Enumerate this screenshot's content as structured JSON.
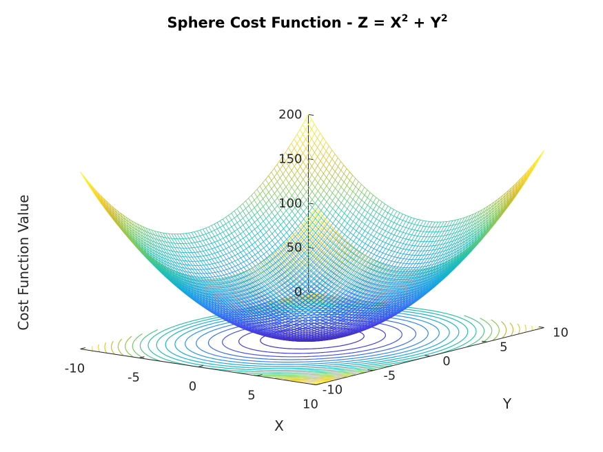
{
  "chart_data": {
    "type": "surface",
    "title": "Sphere Cost Function - Z = X² + Y²",
    "title_parts": {
      "lead": "Sphere Cost Function - Z = X",
      "exp1": "2",
      "mid": " + Y",
      "exp2": "2"
    },
    "xlabel": "X",
    "ylabel": "Y",
    "zlabel": "Cost Function Value",
    "function": "z = x^2 + y^2",
    "xlim": [
      -10,
      10
    ],
    "ylim": [
      -10,
      10
    ],
    "zlim": [
      0,
      200
    ],
    "x_ticks": [
      "-10",
      "-5",
      "0",
      "5",
      "10"
    ],
    "y_ticks": [
      "-10",
      "-5",
      "0",
      "5",
      "10"
    ],
    "z_ticks": [
      "0",
      "50",
      "100",
      "150",
      "200"
    ],
    "x_tick_values": [
      -10,
      -5,
      0,
      5,
      10
    ],
    "y_tick_values": [
      -10,
      -5,
      0,
      5,
      10
    ],
    "z_tick_values": [
      0,
      50,
      100,
      150,
      200
    ],
    "mesh_step": 0.25,
    "contour_levels": [
      10,
      20,
      30,
      40,
      50,
      60,
      70,
      80,
      90,
      100,
      110,
      120,
      130,
      140,
      150,
      160,
      170,
      180,
      190
    ],
    "colormap": [
      "#3e26a8",
      "#4746eb",
      "#2e87f7",
      "#12b1d6",
      "#2bc4a6",
      "#80cb58",
      "#d1bb2f",
      "#fbd925",
      "#f9fb14"
    ],
    "grid": false,
    "legend": "none"
  }
}
